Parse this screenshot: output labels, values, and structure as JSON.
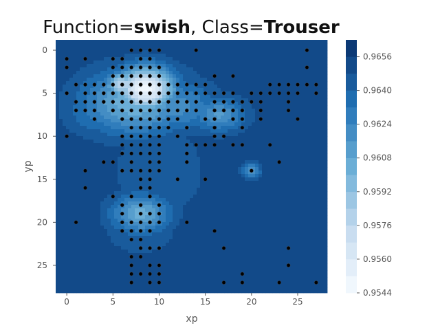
{
  "chart_data": {
    "type": "heatmap",
    "title_parts": [
      {
        "text": "Function=",
        "bold": false
      },
      {
        "text": "swish",
        "bold": true
      },
      {
        "text": ", Class=",
        "bold": false
      },
      {
        "text": "Trouser",
        "bold": true
      }
    ],
    "xlabel": "xp",
    "ylabel": "yp",
    "xlim": [
      -1.2,
      28.2
    ],
    "ylim": [
      28.2,
      -1.2
    ],
    "xticks": [
      0,
      5,
      10,
      15,
      20,
      25
    ],
    "yticks": [
      0,
      5,
      10,
      15,
      20,
      25
    ],
    "colorbar": {
      "min": 0.9544,
      "max": 0.9664,
      "levels": 15,
      "ticks": [
        "0.9544",
        "0.9560",
        "0.9576",
        "0.9592",
        "0.9608",
        "0.9624",
        "0.9640",
        "0.9656"
      ],
      "color_low": "#f7fbff",
      "color_high": "#08306b"
    },
    "background_value": 0.9654,
    "bumps": [
      {
        "x": 8.5,
        "y": 4.5,
        "value": 0.9548,
        "sx": 2.2,
        "sy": 1.8
      },
      {
        "x": 6.0,
        "y": 4.0,
        "value": 0.9575,
        "sx": 1.2,
        "sy": 1.0
      },
      {
        "x": 7.5,
        "y": 6.0,
        "value": 0.96,
        "sx": 4.0,
        "sy": 2.6
      },
      {
        "x": 12.0,
        "y": 6.5,
        "value": 0.962,
        "sx": 3.0,
        "sy": 2.0
      },
      {
        "x": 16.5,
        "y": 7.5,
        "value": 0.9615,
        "sx": 2.0,
        "sy": 1.4
      },
      {
        "x": 3.5,
        "y": 7.0,
        "value": 0.9628,
        "sx": 2.5,
        "sy": 2.0
      },
      {
        "x": 8.0,
        "y": 19.0,
        "value": 0.9605,
        "sx": 2.2,
        "sy": 1.6
      },
      {
        "x": 20.0,
        "y": 14.0,
        "value": 0.9618,
        "sx": 0.7,
        "sy": 0.7
      },
      {
        "x": 10.0,
        "y": 14.0,
        "value": 0.9644,
        "sx": 4.5,
        "sy": 5.0
      },
      {
        "x": 8.0,
        "y": 21.0,
        "value": 0.9644,
        "sx": 3.5,
        "sy": 2.5
      }
    ],
    "points": [
      [
        0,
        1
      ],
      [
        0,
        2
      ],
      [
        2,
        1
      ],
      [
        5,
        1
      ],
      [
        5,
        2
      ],
      [
        6,
        1
      ],
      [
        6,
        2
      ],
      [
        7,
        0
      ],
      [
        7,
        2
      ],
      [
        8,
        0
      ],
      [
        8,
        1
      ],
      [
        8,
        2
      ],
      [
        9,
        0
      ],
      [
        9,
        1
      ],
      [
        9,
        2
      ],
      [
        10,
        0
      ],
      [
        10,
        2
      ],
      [
        14,
        0
      ],
      [
        26,
        0
      ],
      [
        26,
        2
      ],
      [
        1,
        4
      ],
      [
        2,
        4
      ],
      [
        3,
        4
      ],
      [
        4,
        4
      ],
      [
        5,
        4
      ],
      [
        5,
        3
      ],
      [
        6,
        3
      ],
      [
        6,
        4
      ],
      [
        7,
        3
      ],
      [
        7,
        4
      ],
      [
        8,
        3
      ],
      [
        8,
        4
      ],
      [
        9,
        3
      ],
      [
        9,
        4
      ],
      [
        10,
        3
      ],
      [
        10,
        4
      ],
      [
        11,
        4
      ],
      [
        12,
        4
      ],
      [
        13,
        4
      ],
      [
        14,
        4
      ],
      [
        15,
        4
      ],
      [
        16,
        3
      ],
      [
        18,
        3
      ],
      [
        0,
        5
      ],
      [
        2,
        5
      ],
      [
        3,
        5
      ],
      [
        4,
        5
      ],
      [
        5,
        5
      ],
      [
        6,
        5
      ],
      [
        7,
        5
      ],
      [
        8,
        5
      ],
      [
        9,
        5
      ],
      [
        10,
        5
      ],
      [
        11,
        5
      ],
      [
        12,
        5
      ],
      [
        13,
        5
      ],
      [
        14,
        5
      ],
      [
        15,
        5
      ],
      [
        16,
        5
      ],
      [
        17,
        5
      ],
      [
        18,
        5
      ],
      [
        20,
        5
      ],
      [
        21,
        5
      ],
      [
        22,
        4
      ],
      [
        22,
        5
      ],
      [
        23,
        4
      ],
      [
        23,
        5
      ],
      [
        24,
        4
      ],
      [
        24,
        5
      ],
      [
        25,
        4
      ],
      [
        25,
        5
      ],
      [
        26,
        4
      ],
      [
        27,
        4
      ],
      [
        27,
        5
      ],
      [
        1,
        6
      ],
      [
        2,
        6
      ],
      [
        3,
        6
      ],
      [
        4,
        6
      ],
      [
        5,
        6
      ],
      [
        6,
        6
      ],
      [
        7,
        6
      ],
      [
        8,
        6
      ],
      [
        9,
        6
      ],
      [
        10,
        6
      ],
      [
        11,
        6
      ],
      [
        12,
        6
      ],
      [
        13,
        6
      ],
      [
        14,
        6
      ],
      [
        16,
        6
      ],
      [
        17,
        6
      ],
      [
        18,
        6
      ],
      [
        19,
        6
      ],
      [
        20,
        6
      ],
      [
        21,
        6
      ],
      [
        24,
        6
      ],
      [
        1,
        7
      ],
      [
        2,
        7
      ],
      [
        3,
        7
      ],
      [
        5,
        7
      ],
      [
        6,
        7
      ],
      [
        7,
        7
      ],
      [
        8,
        7
      ],
      [
        9,
        7
      ],
      [
        10,
        7
      ],
      [
        11,
        7
      ],
      [
        12,
        7
      ],
      [
        13,
        7
      ],
      [
        14,
        7
      ],
      [
        16,
        7
      ],
      [
        17,
        7
      ],
      [
        18,
        7
      ],
      [
        19,
        7
      ],
      [
        21,
        7
      ],
      [
        24,
        7
      ],
      [
        3,
        8
      ],
      [
        6,
        8
      ],
      [
        7,
        8
      ],
      [
        8,
        8
      ],
      [
        9,
        8
      ],
      [
        10,
        8
      ],
      [
        11,
        8
      ],
      [
        12,
        8
      ],
      [
        15,
        8
      ],
      [
        16,
        8
      ],
      [
        18,
        8
      ],
      [
        19,
        8
      ],
      [
        21,
        8
      ],
      [
        25,
        8
      ],
      [
        7,
        9
      ],
      [
        8,
        9
      ],
      [
        9,
        9
      ],
      [
        10,
        9
      ],
      [
        11,
        9
      ],
      [
        13,
        9
      ],
      [
        16,
        9
      ],
      [
        19,
        9
      ],
      [
        0,
        10
      ],
      [
        6,
        10
      ],
      [
        7,
        10
      ],
      [
        8,
        10
      ],
      [
        9,
        10
      ],
      [
        10,
        10
      ],
      [
        12,
        10
      ],
      [
        16,
        10
      ],
      [
        17,
        10
      ],
      [
        6,
        11
      ],
      [
        7,
        11
      ],
      [
        8,
        11
      ],
      [
        9,
        11
      ],
      [
        10,
        11
      ],
      [
        13,
        11
      ],
      [
        14,
        11
      ],
      [
        15,
        11
      ],
      [
        16,
        11
      ],
      [
        18,
        11
      ],
      [
        19,
        11
      ],
      [
        22,
        11
      ],
      [
        6,
        12
      ],
      [
        7,
        12
      ],
      [
        8,
        12
      ],
      [
        9,
        12
      ],
      [
        10,
        12
      ],
      [
        13,
        12
      ],
      [
        4,
        13
      ],
      [
        5,
        13
      ],
      [
        7,
        13
      ],
      [
        9,
        13
      ],
      [
        10,
        13
      ],
      [
        13,
        13
      ],
      [
        23,
        13
      ],
      [
        2,
        14
      ],
      [
        6,
        14
      ],
      [
        7,
        14
      ],
      [
        8,
        14
      ],
      [
        9,
        14
      ],
      [
        10,
        14
      ],
      [
        20,
        14
      ],
      [
        8,
        15
      ],
      [
        9,
        15
      ],
      [
        12,
        15
      ],
      [
        15,
        15
      ],
      [
        2,
        16
      ],
      [
        8,
        16
      ],
      [
        9,
        16
      ],
      [
        5,
        17
      ],
      [
        7,
        17
      ],
      [
        9,
        17
      ],
      [
        6,
        18
      ],
      [
        8,
        18
      ],
      [
        10,
        18
      ],
      [
        6,
        19
      ],
      [
        8,
        19
      ],
      [
        9,
        19
      ],
      [
        10,
        19
      ],
      [
        1,
        20
      ],
      [
        6,
        20
      ],
      [
        7,
        20
      ],
      [
        8,
        20
      ],
      [
        9,
        20
      ],
      [
        10,
        20
      ],
      [
        13,
        20
      ],
      [
        6,
        21
      ],
      [
        7,
        21
      ],
      [
        8,
        21
      ],
      [
        9,
        21
      ],
      [
        16,
        21
      ],
      [
        7,
        22
      ],
      [
        8,
        22
      ],
      [
        8,
        23
      ],
      [
        9,
        23
      ],
      [
        10,
        23
      ],
      [
        17,
        23
      ],
      [
        24,
        23
      ],
      [
        7,
        24
      ],
      [
        8,
        24
      ],
      [
        7,
        25
      ],
      [
        9,
        25
      ],
      [
        10,
        25
      ],
      [
        24,
        25
      ],
      [
        7,
        26
      ],
      [
        8,
        26
      ],
      [
        9,
        26
      ],
      [
        10,
        26
      ],
      [
        19,
        26
      ],
      [
        7,
        27
      ],
      [
        9,
        27
      ],
      [
        10,
        27
      ],
      [
        17,
        27
      ],
      [
        19,
        27
      ],
      [
        23,
        27
      ],
      [
        27,
        27
      ]
    ]
  }
}
